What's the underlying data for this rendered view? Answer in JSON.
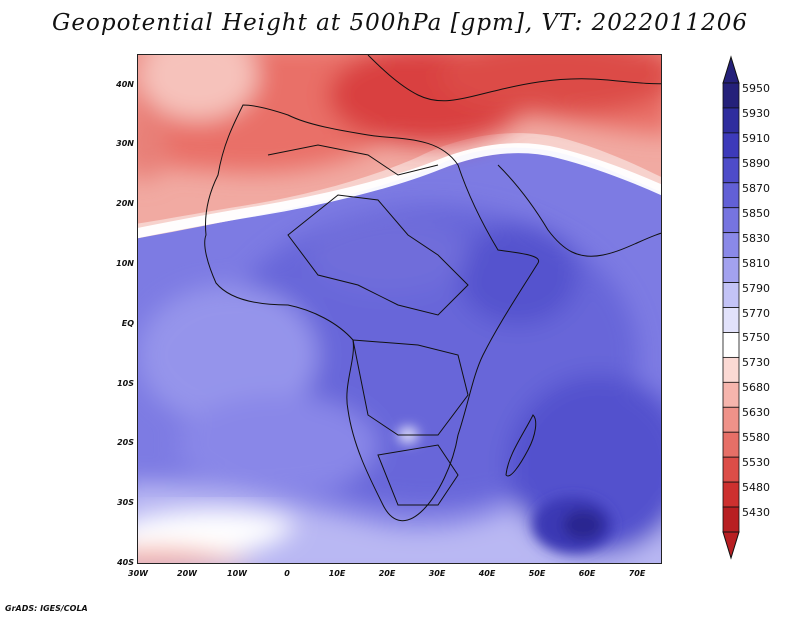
{
  "title": "Geopotential Height at 500hPa [gpm], VT: 2022011206",
  "footer": "GrADS: IGES/COLA",
  "lat_labels": [
    "40N",
    "30N",
    "20N",
    "10N",
    "EQ",
    "10S",
    "20S",
    "30S",
    "40S"
  ],
  "lon_labels": [
    "30W",
    "20W",
    "10W",
    "0",
    "10E",
    "20E",
    "30E",
    "40E",
    "50E",
    "60E",
    "70E"
  ],
  "colorbar": {
    "levels": [
      "5950",
      "5930",
      "5910",
      "5890",
      "5870",
      "5850",
      "5830",
      "5810",
      "5790",
      "5770",
      "5750",
      "5730",
      "5680",
      "5630",
      "5580",
      "5530",
      "5480",
      "5430"
    ],
    "colors": [
      "#25217a",
      "#2f2d9e",
      "#3d3aba",
      "#4e4cc9",
      "#6260d6",
      "#7674e0",
      "#8a89e8",
      "#a3a2ef",
      "#c3c3f6",
      "#e2e2fb",
      "#ffffff",
      "#fbd9d4",
      "#f6b5ad",
      "#ef9289",
      "#e66f67",
      "#dc4d48",
      "#cd302f",
      "#b81f22"
    ]
  },
  "colors": {
    "deep_blue": "#3a37b7",
    "mid_blue": "#6664d8",
    "light_blue": "#8f8ee9",
    "pale_blue": "#cfcff8",
    "light_red": "#f3aaa2",
    "mid_red": "#e2615a",
    "deep_red": "#c92b2d"
  }
}
